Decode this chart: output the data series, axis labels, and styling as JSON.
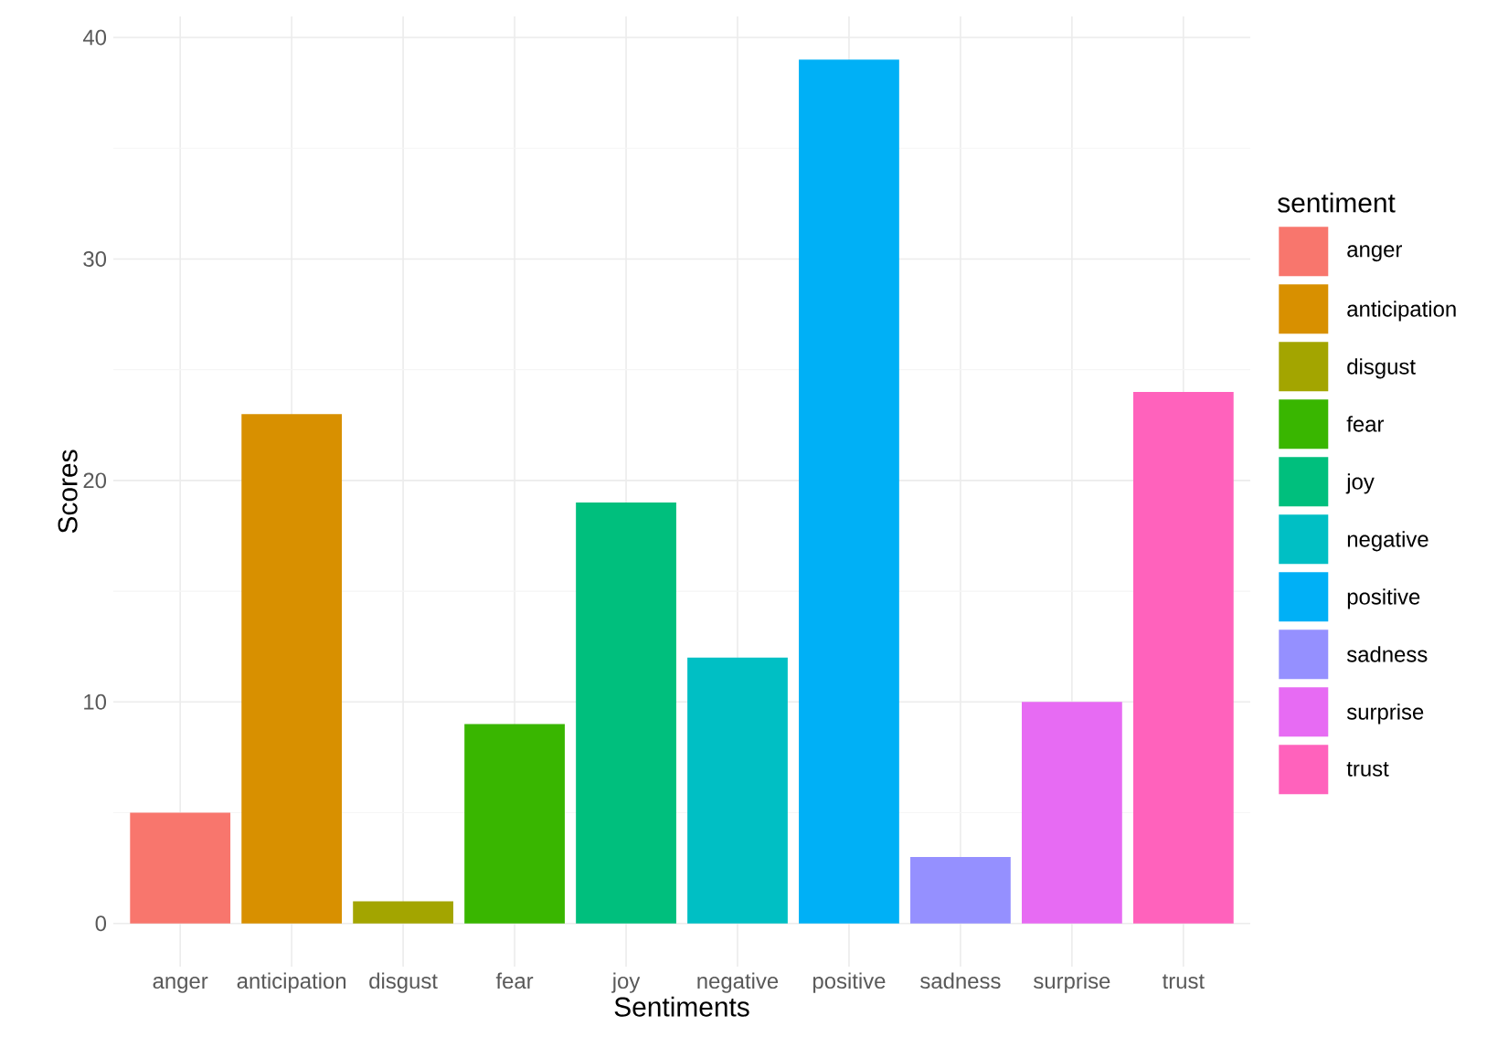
{
  "chart_data": {
    "type": "bar",
    "xlabel": "Sentiments",
    "ylabel": "Scores",
    "legend_title": "sentiment",
    "categories": [
      "anger",
      "anticipation",
      "disgust",
      "fear",
      "joy",
      "negative",
      "positive",
      "sadness",
      "surprise",
      "trust"
    ],
    "series": [
      {
        "name": "anger",
        "color": "#f8766d",
        "values": [
          5,
          null,
          null,
          null,
          null,
          null,
          null,
          null,
          null,
          null
        ]
      },
      {
        "name": "anticipation",
        "color": "#d89000",
        "values": [
          null,
          23,
          null,
          null,
          null,
          null,
          null,
          null,
          null,
          null
        ]
      },
      {
        "name": "disgust",
        "color": "#a3a500",
        "values": [
          null,
          null,
          1,
          null,
          null,
          null,
          null,
          null,
          null,
          null
        ]
      },
      {
        "name": "fear",
        "color": "#39b600",
        "values": [
          null,
          null,
          null,
          9,
          null,
          null,
          null,
          null,
          null,
          null
        ]
      },
      {
        "name": "joy",
        "color": "#00bf7d",
        "values": [
          null,
          null,
          null,
          null,
          19,
          null,
          null,
          null,
          null,
          null
        ]
      },
      {
        "name": "negative",
        "color": "#00bfc4",
        "values": [
          null,
          null,
          null,
          null,
          null,
          12,
          null,
          null,
          null,
          null
        ]
      },
      {
        "name": "positive",
        "color": "#00b0f6",
        "values": [
          null,
          null,
          null,
          null,
          null,
          null,
          39,
          null,
          null,
          null
        ]
      },
      {
        "name": "sadness",
        "color": "#9590ff",
        "values": [
          null,
          null,
          null,
          null,
          null,
          null,
          null,
          3,
          null,
          null
        ]
      },
      {
        "name": "surprise",
        "color": "#e76bf3",
        "values": [
          null,
          null,
          null,
          null,
          null,
          null,
          null,
          null,
          10,
          null
        ]
      },
      {
        "name": "trust",
        "color": "#ff62bc",
        "values": [
          null,
          null,
          null,
          null,
          null,
          null,
          null,
          null,
          null,
          24
        ]
      }
    ],
    "ylim": [
      -1.95,
      40.95
    ],
    "yticks": [
      0,
      10,
      20,
      30,
      40
    ],
    "grid": true,
    "legend": "right"
  }
}
